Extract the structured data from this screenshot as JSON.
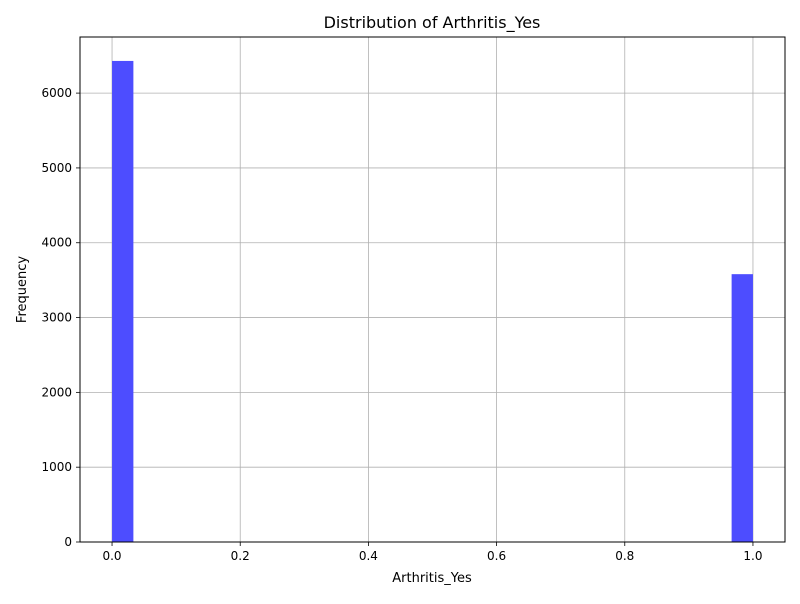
{
  "chart_data": {
    "type": "histogram",
    "title": "Distribution of Arthritis_Yes",
    "xlabel": "Arthritis_Yes",
    "ylabel": "Frequency",
    "xlim": [
      -0.05,
      1.05
    ],
    "ylim": [
      0,
      6750
    ],
    "grid": true,
    "bar_color": "#4d4dff",
    "bins": [
      {
        "x0": 0.0,
        "x1": 0.0333,
        "count": 6430
      },
      {
        "x0": 0.9667,
        "x1": 1.0,
        "count": 3580
      }
    ],
    "x_ticks": [
      {
        "value": 0.0,
        "label": "0.0"
      },
      {
        "value": 0.2,
        "label": "0.2"
      },
      {
        "value": 0.4,
        "label": "0.4"
      },
      {
        "value": 0.6,
        "label": "0.6"
      },
      {
        "value": 0.8,
        "label": "0.8"
      },
      {
        "value": 1.0,
        "label": "1.0"
      }
    ],
    "y_ticks": [
      {
        "value": 0,
        "label": "0"
      },
      {
        "value": 1000,
        "label": "1000"
      },
      {
        "value": 2000,
        "label": "2000"
      },
      {
        "value": 3000,
        "label": "3000"
      },
      {
        "value": 4000,
        "label": "4000"
      },
      {
        "value": 5000,
        "label": "5000"
      },
      {
        "value": 6000,
        "label": "6000"
      }
    ]
  }
}
